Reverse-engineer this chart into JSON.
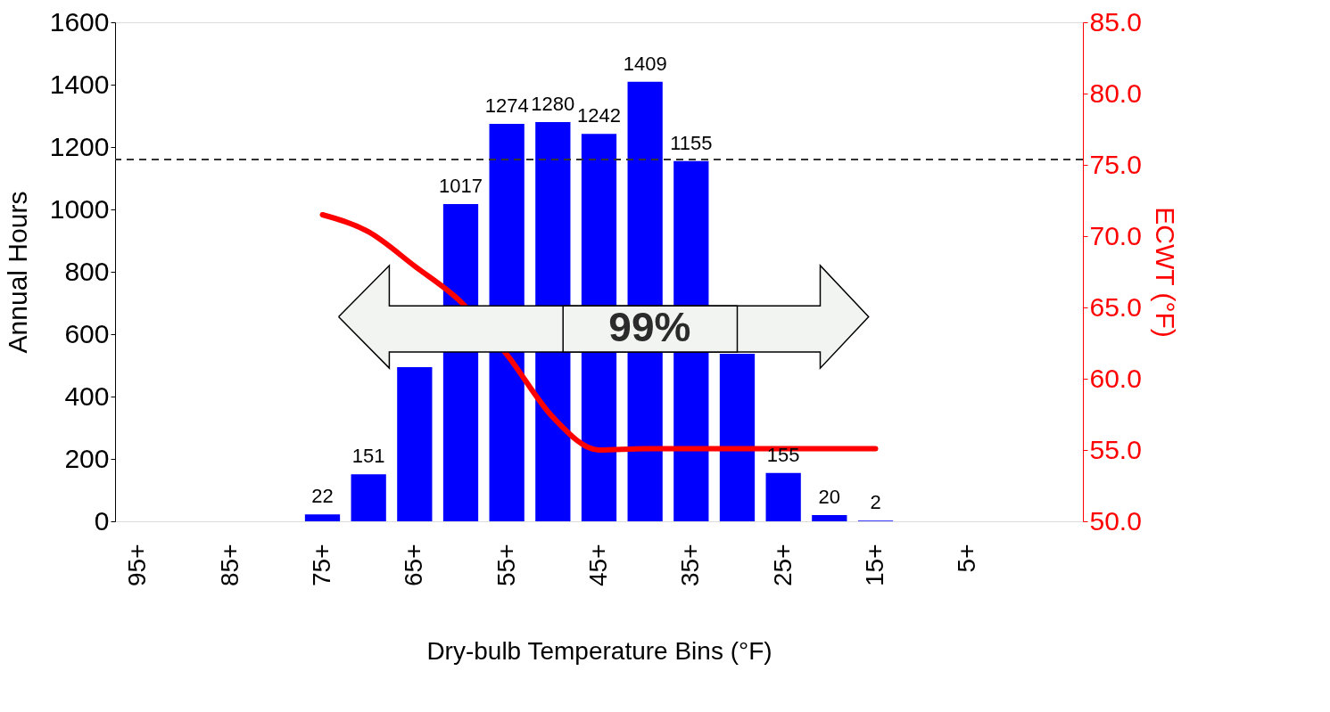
{
  "chart_data": {
    "type": "bar",
    "xlabel": "Dry-bulb Temperature Bins (°F)",
    "ylabel": "Annual Hours",
    "y2label": "ECWT (°F)",
    "categories": [
      "95+",
      null,
      "85+",
      null,
      "75+",
      null,
      "65+",
      null,
      "55+",
      null,
      "45+",
      null,
      "35+",
      null,
      "25+",
      null,
      "15+",
      null,
      "5+",
      null,
      null
    ],
    "series": [
      {
        "color": "#0000ff",
        "values": [
          0,
          0,
          0,
          0,
          22,
          151,
          494,
          1017,
          1274,
          1280,
          1242,
          1409,
          1155,
          537,
          155,
          20,
          2,
          0,
          0,
          0,
          0
        ],
        "value_labels": [
          null,
          null,
          null,
          null,
          "22",
          "151",
          null,
          "1017",
          "1274",
          "1280",
          "1242",
          "1409",
          "1155",
          null,
          "155",
          "20",
          "2",
          null,
          null,
          null,
          null
        ]
      },
      {
        "type": "line",
        "axis": "y2",
        "color": "#ff0000",
        "values": [
          null,
          null,
          null,
          null,
          71.5,
          70.3,
          67.9,
          65.4,
          61.7,
          57.3,
          55.0,
          55.1,
          55.1,
          55.1,
          55.1,
          55.1,
          55.1,
          null,
          null,
          null,
          null
        ]
      }
    ],
    "ylim": [
      0,
      1600
    ],
    "yticks": [
      0,
      200,
      400,
      600,
      800,
      1000,
      1200,
      1400,
      1600
    ],
    "y2lim": [
      50,
      85
    ],
    "y2ticks": [
      {
        "value": 50,
        "label": "50.0"
      },
      {
        "value": 55,
        "label": "55.0"
      },
      {
        "value": 60,
        "label": "60.0"
      },
      {
        "value": 65,
        "label": "65.0"
      },
      {
        "value": 70,
        "label": "70.0"
      },
      {
        "value": 75,
        "label": "75.0"
      },
      {
        "value": 80,
        "label": "80.0"
      },
      {
        "value": 85,
        "label": "85.0"
      }
    ],
    "ref_lines": [
      {
        "axis": "y",
        "value": 1160,
        "color": "#333333",
        "line_style": "dashed"
      }
    ],
    "annotations": [
      "99%"
    ],
    "grid": false
  }
}
